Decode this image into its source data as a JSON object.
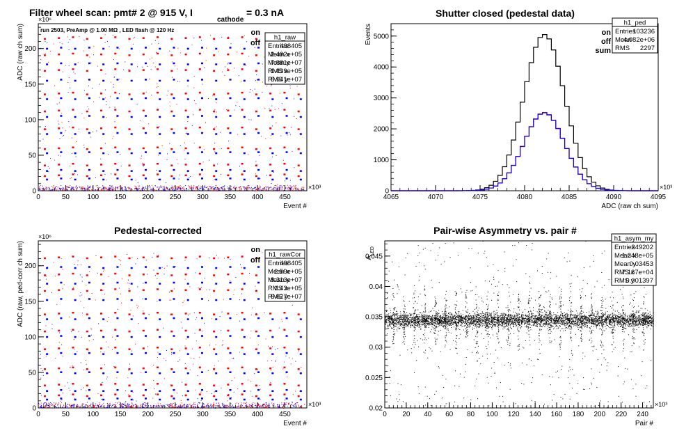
{
  "chart_data": [
    {
      "id": "raw",
      "type": "scatter",
      "title_main": "Filter wheel scan: pmt#   2 @   915 V, I",
      "title_sub": "cathode",
      "title_tail": "= 0.3 nA",
      "subtitle": "run 2503, PreAmp @ 1.00 MΩ , LED flash @  120 Hz",
      "xlabel": "Event #",
      "ylabel": "ADC (raw ch sum)",
      "x_exponent": "×10³",
      "y_exponent": "×10⁶",
      "xlim": [
        0,
        490
      ],
      "ylim": [
        0,
        235
      ],
      "xticks": [
        0,
        50,
        100,
        150,
        200,
        250,
        300,
        350,
        400,
        450
      ],
      "yticks": [
        0,
        50,
        100,
        150,
        200
      ],
      "legend": [
        {
          "label": "on",
          "color": "#ff0000"
        },
        {
          "label": "off",
          "color": "#0000ff"
        }
      ],
      "stats": {
        "name": "h1_raw",
        "rows": [
          [
            "Entries",
            "498405"
          ],
          [
            "Mean x",
            "2.492e+05"
          ],
          [
            "Mean y",
            "7.881e+07"
          ],
          [
            "RMS x",
            "1.439e+05"
          ],
          [
            "RMS y",
            "6.941e+07"
          ]
        ]
      },
      "levels_on": [
        215,
        192,
        170,
        137,
        113,
        88,
        60,
        37,
        22
      ],
      "levels_off": [
        200,
        178,
        155,
        129,
        104,
        80,
        53,
        28,
        16
      ]
    },
    {
      "id": "ped",
      "type": "histogram",
      "title": "Shutter closed (pedestal data)",
      "xlabel": "ADC (raw ch sum)",
      "ylabel": "Events",
      "x_exponent": "×10³",
      "xlim": [
        4065,
        4095
      ],
      "ylim": [
        0,
        5400
      ],
      "xticks": [
        4065,
        4070,
        4075,
        4080,
        4085,
        4090,
        4095
      ],
      "yticks": [
        0,
        1000,
        2000,
        3000,
        4000,
        5000
      ],
      "legend": [
        {
          "label": "on",
          "color": "#ff0000"
        },
        {
          "label": "off",
          "color": "#0000ff"
        },
        {
          "label": "sum",
          "color": "#000000"
        }
      ],
      "stats": {
        "name": "h1_ped",
        "rows": [
          [
            "Entries",
            "103236"
          ],
          [
            "Mean",
            "4.082e+06"
          ],
          [
            "RMS",
            "2297"
          ]
        ]
      },
      "series": [
        {
          "name": "sum",
          "color": "#000000",
          "mean": 4082.2,
          "sigma": 2.3,
          "peak": 5050
        },
        {
          "name": "on",
          "color": "#ff0000",
          "mean": 4082.2,
          "sigma": 2.3,
          "peak": 2530
        },
        {
          "name": "off",
          "color": "#0000ff",
          "mean": 4082.2,
          "sigma": 2.3,
          "peak": 2520
        }
      ]
    },
    {
      "id": "rawCor",
      "type": "scatter",
      "title": "Pedestal-corrected",
      "xlabel": "Event #",
      "ylabel": "ADC (raw, ped-corr ch sum)",
      "x_exponent": "×10³",
      "y_exponent": "×10⁶",
      "xlim": [
        0,
        490
      ],
      "ylim": [
        0,
        235
      ],
      "xticks": [
        0,
        50,
        100,
        150,
        200,
        250,
        300,
        350,
        400,
        450
      ],
      "yticks": [
        0,
        50,
        100,
        150,
        200
      ],
      "legend": [
        {
          "label": "on",
          "color": "#ff0000"
        },
        {
          "label": "off",
          "color": "#0000ff"
        }
      ],
      "stats": {
        "name": "h1_rawCor",
        "rows": [
          [
            "Entries",
            "498405"
          ],
          [
            "Mean x",
            "2.59e+05"
          ],
          [
            "Mean y",
            "8.313e+07"
          ],
          [
            "RMS x",
            "1.43e+05"
          ],
          [
            "RMS y",
            "6.827e+07"
          ]
        ]
      },
      "levels_on": [
        212,
        188,
        166,
        133,
        109,
        84,
        56,
        33,
        18
      ],
      "levels_off": [
        197,
        175,
        152,
        125,
        100,
        76,
        49,
        24,
        12
      ]
    },
    {
      "id": "asym",
      "type": "scatter",
      "title": "Pair-wise Asymmetry vs. pair #",
      "xlabel": "Pair #",
      "ylabel": "A",
      "ylabel_sub": "LED",
      "x_exponent": "×10³",
      "xlim": [
        0,
        250
      ],
      "ylim": [
        0.02,
        0.0475
      ],
      "xticks": [
        0,
        20,
        40,
        60,
        80,
        100,
        120,
        140,
        160,
        180,
        200,
        220,
        240
      ],
      "yticks": [
        0.02,
        0.025,
        0.03,
        0.035,
        0.04,
        0.045
      ],
      "ytick_labels": [
        "0.02",
        "0.025",
        "0.03",
        "0.035",
        "0.04",
        "0.045"
      ],
      "stats": {
        "name": "h1_asym_my",
        "rows": [
          [
            "Entries",
            "249202"
          ],
          [
            "Mean x",
            "1.248e+05"
          ],
          [
            "Mean y",
            "0.03453"
          ],
          [
            "RMS x",
            "7.187e+04"
          ],
          [
            "RMS y",
            "0.001397"
          ]
        ]
      },
      "band_center": 0.0345,
      "band_halfwidth": 0.0013
    }
  ]
}
